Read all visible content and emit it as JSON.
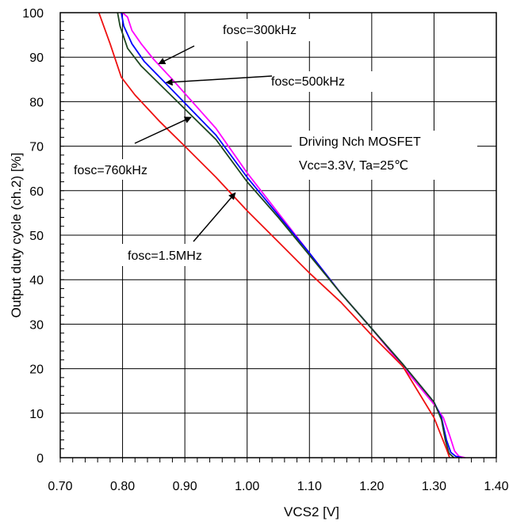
{
  "chart_data": {
    "type": "line",
    "title": "",
    "xlabel": "VCS2 [V]",
    "ylabel": "Output duty cycle (ch.2) [%]",
    "xlim": [
      0.7,
      1.4
    ],
    "ylim": [
      0,
      100
    ],
    "x_ticks": [
      "0.70",
      "0.80",
      "0.90",
      "1.00",
      "1.10",
      "1.20",
      "1.30",
      "1.40"
    ],
    "y_ticks": [
      "0",
      "10",
      "20",
      "30",
      "40",
      "50",
      "60",
      "70",
      "80",
      "90",
      "100"
    ],
    "grid": true,
    "legend": "none",
    "series": [
      {
        "name": "fosc=300kHz",
        "color": "#ff00ff",
        "points": [
          [
            0.8,
            100
          ],
          [
            0.808,
            99
          ],
          [
            0.815,
            96
          ],
          [
            0.83,
            93
          ],
          [
            0.85,
            89.5
          ],
          [
            0.88,
            85
          ],
          [
            0.95,
            74
          ],
          [
            1.0,
            64
          ],
          [
            1.05,
            55
          ],
          [
            1.1,
            46
          ],
          [
            1.15,
            37
          ],
          [
            1.2,
            29
          ],
          [
            1.25,
            20.5
          ],
          [
            1.3,
            12
          ],
          [
            1.315,
            9
          ],
          [
            1.325,
            5
          ],
          [
            1.333,
            1.5
          ],
          [
            1.34,
            0.3
          ],
          [
            1.35,
            0
          ]
        ]
      },
      {
        "name": "fosc=500kHz",
        "color": "#0000ff",
        "points": [
          [
            0.798,
            100
          ],
          [
            0.802,
            97
          ],
          [
            0.815,
            93
          ],
          [
            0.835,
            89
          ],
          [
            0.87,
            84
          ],
          [
            0.95,
            72.5
          ],
          [
            1.0,
            63
          ],
          [
            1.05,
            54.5
          ],
          [
            1.1,
            46
          ],
          [
            1.15,
            37
          ],
          [
            1.2,
            29
          ],
          [
            1.25,
            21
          ],
          [
            1.3,
            12.5
          ],
          [
            1.312,
            9
          ],
          [
            1.32,
            4
          ],
          [
            1.327,
            1.2
          ],
          [
            1.335,
            0.3
          ],
          [
            1.345,
            0
          ]
        ]
      },
      {
        "name": "fosc=760kHz",
        "color": "#1e4620",
        "points": [
          [
            0.792,
            100
          ],
          [
            0.796,
            97
          ],
          [
            0.808,
            92
          ],
          [
            0.83,
            88
          ],
          [
            0.87,
            82.5
          ],
          [
            0.95,
            71.5
          ],
          [
            1.0,
            62
          ],
          [
            1.05,
            54
          ],
          [
            1.1,
            45.5
          ],
          [
            1.15,
            37
          ],
          [
            1.2,
            29
          ],
          [
            1.25,
            21
          ],
          [
            1.3,
            12.5
          ],
          [
            1.312,
            8.5
          ],
          [
            1.318,
            4
          ],
          [
            1.324,
            1
          ],
          [
            1.332,
            0
          ]
        ]
      },
      {
        "name": "fosc=1.5MHz",
        "color": "#ee1111",
        "points": [
          [
            0.762,
            100
          ],
          [
            0.78,
            93
          ],
          [
            0.798,
            85.5
          ],
          [
            0.82,
            81.5
          ],
          [
            0.86,
            75.5
          ],
          [
            0.9,
            70
          ],
          [
            0.95,
            63
          ],
          [
            1.0,
            55.5
          ],
          [
            1.05,
            48.5
          ],
          [
            1.1,
            41.5
          ],
          [
            1.15,
            35
          ],
          [
            1.2,
            27.5
          ],
          [
            1.25,
            20.5
          ],
          [
            1.3,
            9
          ],
          [
            1.32,
            2
          ],
          [
            1.325,
            0
          ]
        ]
      }
    ],
    "annotations": [
      {
        "text": "fosc=300kHz",
        "arrow_to": [
          0.858,
          88.5
        ]
      },
      {
        "text": "fosc=500kHz",
        "arrow_to": [
          0.87,
          84.3
        ]
      },
      {
        "text": "fosc=760kHz",
        "arrow_to": [
          0.91,
          76.5
        ]
      },
      {
        "text": "fosc=1.5MHz",
        "arrow_to": [
          0.981,
          59.5
        ]
      },
      {
        "text": "Driving Nch MOSFET"
      },
      {
        "text": "Vcc=3.3V, Ta=25℃"
      }
    ]
  }
}
